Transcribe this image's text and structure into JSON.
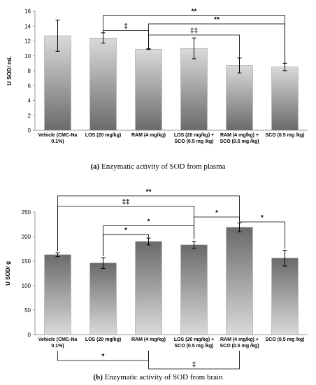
{
  "chart_data": [
    {
      "type": "bar",
      "panel_label": "(a)",
      "caption": "Enzymatic activity of SOD from plasma",
      "ylabel": "U SOD/ mL",
      "xlabel": "",
      "ylim": [
        0,
        16
      ],
      "yticks": [
        0,
        2,
        4,
        6,
        8,
        10,
        12,
        14,
        16
      ],
      "grid": false,
      "categories": [
        [
          "Vehicle (CMC-Na",
          "0.1%)"
        ],
        [
          "LOS (20 mg/kg)"
        ],
        [
          "RAM (4 mg/kg)"
        ],
        [
          "LOS (20 mg/kg) +",
          "SCO (0.5 mg /kg)"
        ],
        [
          "RAM (4 mg/kg) +",
          "SCO (0.5 mg /kg)"
        ],
        [
          "SCO (0.5 mg /kg)"
        ]
      ],
      "values": [
        12.7,
        12.4,
        10.9,
        11.0,
        8.7,
        8.5
      ],
      "errors": [
        2.1,
        0.7,
        0.05,
        1.4,
        1.0,
        0.5
      ],
      "annotations": [
        {
          "from": 1,
          "to": 5,
          "level": 15.4,
          "label": "**",
          "drop": [
            13.1,
            9.0
          ]
        },
        {
          "from": 2,
          "to": 5,
          "level": 14.3,
          "label": "**",
          "drop": [
            11.0,
            9.0
          ]
        },
        {
          "from": 1,
          "to": 2,
          "level": 13.4,
          "label": "‡",
          "drop": [
            13.1,
            11.0
          ]
        },
        {
          "from": 2,
          "to": 4,
          "level": 12.8,
          "label": "‡‡",
          "drop": [
            11.0,
            9.7
          ]
        }
      ],
      "bottom_annotations": []
    },
    {
      "type": "bar",
      "panel_label": "(b)",
      "caption": "Enzymatic activity of SOD from brain",
      "ylabel": "U SOD/ g",
      "xlabel": "",
      "ylim": [
        0,
        250
      ],
      "yticks": [
        0,
        50,
        100,
        150,
        200,
        250
      ],
      "grid": false,
      "categories": [
        [
          "Vehicle (CMC-Na",
          "0.1%)"
        ],
        [
          "LOS (20 mg/kg)"
        ],
        [
          "RAM (4 mg/kg)"
        ],
        [
          "LOS (20 mg/kg) +",
          "SCO (0.5 mg /kg)"
        ],
        [
          "RAM (4 mg/kg) +",
          "SCO (0.5 mg /kg)"
        ],
        [
          "SCO (0.5 mg /kg)"
        ]
      ],
      "values": [
        163,
        146,
        190,
        183,
        219,
        156
      ],
      "errors": [
        4,
        11,
        7,
        7,
        9,
        16
      ],
      "annotations": [
        {
          "from": 0,
          "to": 4,
          "level": 283,
          "label": "**",
          "drop": [
            170,
            232
          ]
        },
        {
          "from": 0,
          "to": 3,
          "level": 262,
          "label": "‡‡",
          "drop": [
            170,
            195
          ]
        },
        {
          "from": 3,
          "to": 4,
          "level": 240,
          "label": "*",
          "drop": [
            195,
            232
          ]
        },
        {
          "from": 4,
          "to": 5,
          "level": 230,
          "label": "*",
          "drop": [
            232,
            175
          ]
        },
        {
          "from": 1,
          "to": 3,
          "level": 222,
          "label": "*",
          "drop": [
            160,
            195
          ]
        },
        {
          "from": 1,
          "to": 2,
          "level": 204,
          "label": "*",
          "drop": [
            160,
            198
          ]
        }
      ],
      "bottom_annotations": [
        {
          "from": 0,
          "to": 2,
          "label": "*",
          "row": 0
        },
        {
          "from": 2,
          "to": 4,
          "label": "‡",
          "row": 1
        }
      ]
    }
  ]
}
